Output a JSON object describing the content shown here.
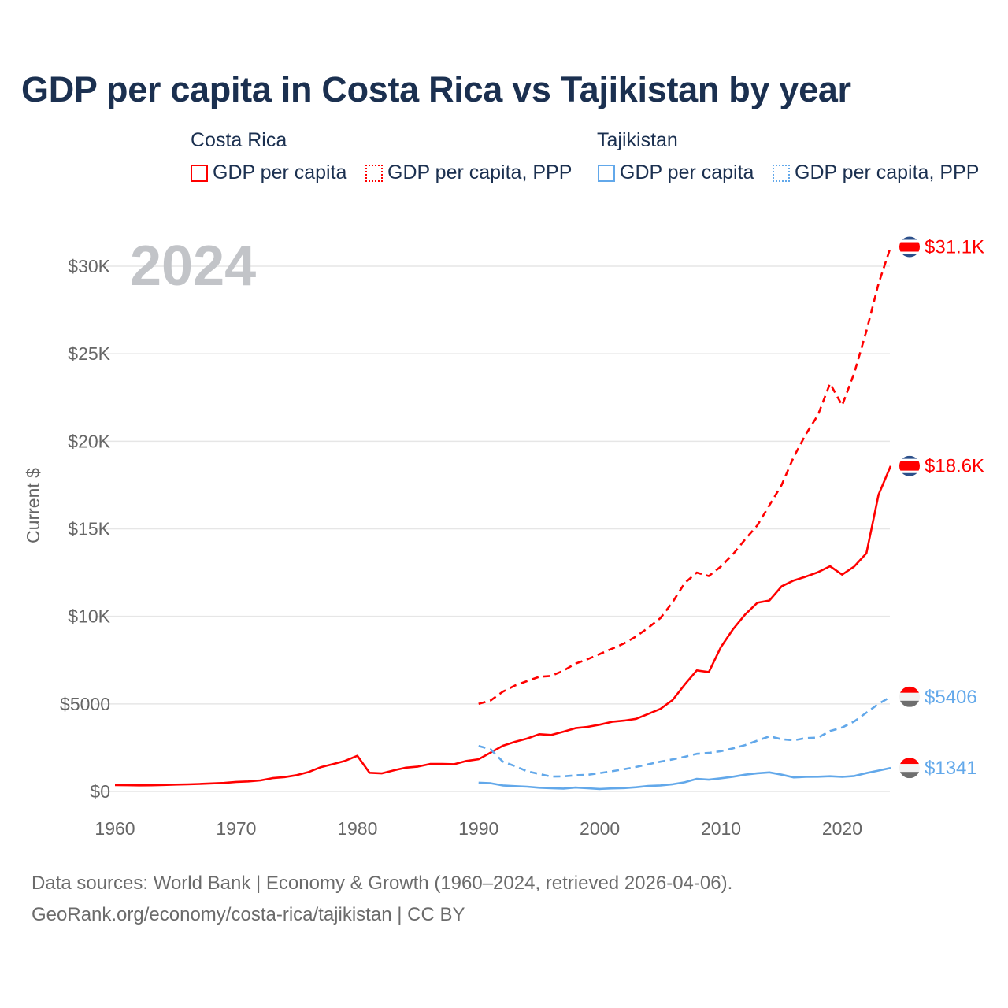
{
  "title": "GDP per capita in Costa Rica vs Tajikistan by year",
  "legend": {
    "groups": [
      {
        "country": "Costa Rica",
        "items": [
          "GDP per capita",
          "GDP per capita, PPP"
        ],
        "color": "#ff0000"
      },
      {
        "country": "Tajikistan",
        "items": [
          "GDP per capita",
          "GDP per capita, PPP"
        ],
        "color": "#62a8ea"
      }
    ]
  },
  "year_watermark": "2024",
  "footer": {
    "line1": "Data sources: World Bank | Economy & Growth (1960–2024, retrieved 2026-04-06).",
    "line2": "GeoRank.org/economy/costa-rica/tajikistan | CC BY"
  },
  "chart_data": {
    "type": "line",
    "title": "GDP per capita in Costa Rica vs Tajikistan by year",
    "xlabel": "",
    "ylabel": "Current $",
    "xlim": [
      1960,
      2024
    ],
    "ylim": [
      0,
      32000
    ],
    "x_ticks": [
      1960,
      1970,
      1980,
      1990,
      2000,
      2010,
      2020
    ],
    "x_tick_labels": [
      "1960",
      "1970",
      "1980",
      "1990",
      "2000",
      "2010",
      "2020"
    ],
    "y_ticks": [
      0,
      5000,
      10000,
      15000,
      20000,
      25000,
      30000
    ],
    "y_tick_labels": [
      "$0",
      "$5000",
      "$10K",
      "$15K",
      "$20K",
      "$25K",
      "$30K"
    ],
    "grid": true,
    "legend_position": "top",
    "series": [
      {
        "name": "Costa Rica GDP per capita",
        "color": "#ff0000",
        "dash": false,
        "start": 1960,
        "end_label": "$18.6K",
        "flag": "costa-rica",
        "values": [
          365,
          357,
          347,
          350,
          370,
          390,
          406,
          429,
          458,
          484,
          543,
          571,
          629,
          762,
          817,
          931,
          1117,
          1389,
          1566,
          1750,
          2038,
          1068,
          1029,
          1204,
          1357,
          1421,
          1571,
          1569,
          1554,
          1741,
          1838,
          2220,
          2607,
          2833,
          3020,
          3269,
          3224,
          3413,
          3614,
          3690,
          3815,
          3977,
          4043,
          4146,
          4424,
          4714,
          5216,
          6099,
          6911,
          6817,
          8248,
          9269,
          10111,
          10777,
          10906,
          11714,
          12048,
          12272,
          12522,
          12863,
          12381,
          12850,
          13600,
          16942,
          18587
        ]
      },
      {
        "name": "Costa Rica GDP per capita, PPP",
        "color": "#ff0000",
        "dash": true,
        "start": 1990,
        "end_label": "$31.1K",
        "flag": "costa-rica",
        "values": [
          5000,
          5200,
          5700,
          6050,
          6300,
          6550,
          6600,
          6900,
          7300,
          7550,
          7850,
          8150,
          8450,
          8850,
          9350,
          9900,
          10800,
          11900,
          12500,
          12300,
          12850,
          13550,
          14400,
          15200,
          16350,
          17500,
          19100,
          20400,
          21500,
          23300,
          22050,
          23900,
          26300,
          29000,
          31100
        ]
      },
      {
        "name": "Tajikistan GDP per capita",
        "color": "#62a8ea",
        "dash": false,
        "start": 1990,
        "end_label": "$1341",
        "flag": "tajikistan",
        "values": [
          500,
          470,
          340,
          300,
          270,
          210,
          180,
          160,
          220,
          180,
          140,
          170,
          190,
          240,
          310,
          340,
          410,
          520,
          720,
          670,
          750,
          840,
          960,
          1040,
          1090,
          960,
          800,
          830,
          840,
          870,
          830,
          880,
          1050,
          1190,
          1341
        ]
      },
      {
        "name": "Tajikistan GDP per capita, PPP",
        "color": "#62a8ea",
        "dash": true,
        "start": 1990,
        "end_label": "$5406",
        "flag": "tajikistan",
        "values": [
          2600,
          2400,
          1700,
          1450,
          1150,
          1000,
          850,
          860,
          920,
          950,
          1050,
          1150,
          1270,
          1400,
          1550,
          1700,
          1830,
          1980,
          2150,
          2200,
          2300,
          2460,
          2650,
          2900,
          3150,
          2980,
          2920,
          3050,
          3070,
          3450,
          3650,
          4000,
          4500,
          5000,
          5406
        ]
      }
    ]
  }
}
